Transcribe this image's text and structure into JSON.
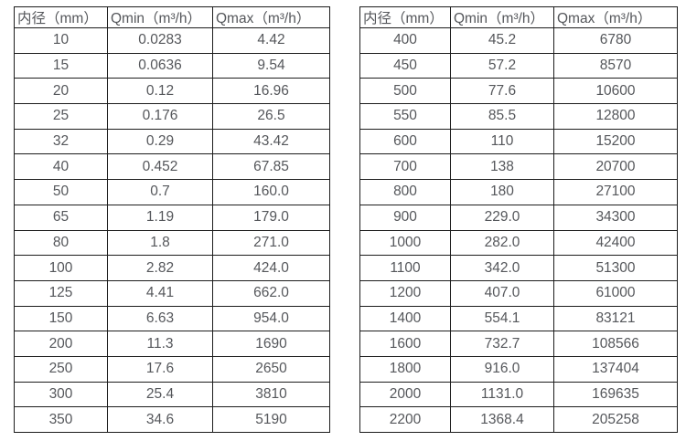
{
  "page": {
    "background": "#ffffff",
    "text_color": "#55575b",
    "border_color": "#1c1c1c"
  },
  "tables": [
    {
      "id": "small-diameter-flow-table",
      "headers": [
        "内径（mm）",
        "Qmin（m³/h）",
        "Qmax（m³/h）"
      ],
      "rows": [
        [
          "10",
          "0.0283",
          "4.42"
        ],
        [
          "15",
          "0.0636",
          "9.54"
        ],
        [
          "20",
          "0.12",
          "16.96"
        ],
        [
          "25",
          "0.176",
          "26.5"
        ],
        [
          "32",
          "0.29",
          "43.42"
        ],
        [
          "40",
          "0.452",
          "67.85"
        ],
        [
          "50",
          "0.7",
          "160.0"
        ],
        [
          "65",
          "1.19",
          "179.0"
        ],
        [
          "80",
          "1.8",
          "271.0"
        ],
        [
          "100",
          "2.82",
          "424.0"
        ],
        [
          "125",
          "4.41",
          "662.0"
        ],
        [
          "150",
          "6.63",
          "954.0"
        ],
        [
          "200",
          "11.3",
          "1690"
        ],
        [
          "250",
          "17.6",
          "2650"
        ],
        [
          "300",
          "25.4",
          "3810"
        ],
        [
          "350",
          "34.6",
          "5190"
        ]
      ]
    },
    {
      "id": "large-diameter-flow-table",
      "headers": [
        "内径（mm）",
        "Qmin（m³/h）",
        "Qmax（m³/h）"
      ],
      "rows": [
        [
          "400",
          "45.2",
          "6780"
        ],
        [
          "450",
          "57.2",
          "8570"
        ],
        [
          "500",
          "77.6",
          "10600"
        ],
        [
          "550",
          "85.5",
          "12800"
        ],
        [
          "600",
          "110",
          "15200"
        ],
        [
          "700",
          "138",
          "20700"
        ],
        [
          "800",
          "180",
          "27100"
        ],
        [
          "900",
          "229.0",
          "34300"
        ],
        [
          "1000",
          "282.0",
          "42400"
        ],
        [
          "1100",
          "342.0",
          "51300"
        ],
        [
          "1200",
          "407.0",
          "61000"
        ],
        [
          "1400",
          "554.1",
          "83121"
        ],
        [
          "1600",
          "732.7",
          "108566"
        ],
        [
          "1800",
          "916.0",
          "137404"
        ],
        [
          "2000",
          "1131.0",
          "169635"
        ],
        [
          "2200",
          "1368.4",
          "205258"
        ]
      ]
    }
  ]
}
